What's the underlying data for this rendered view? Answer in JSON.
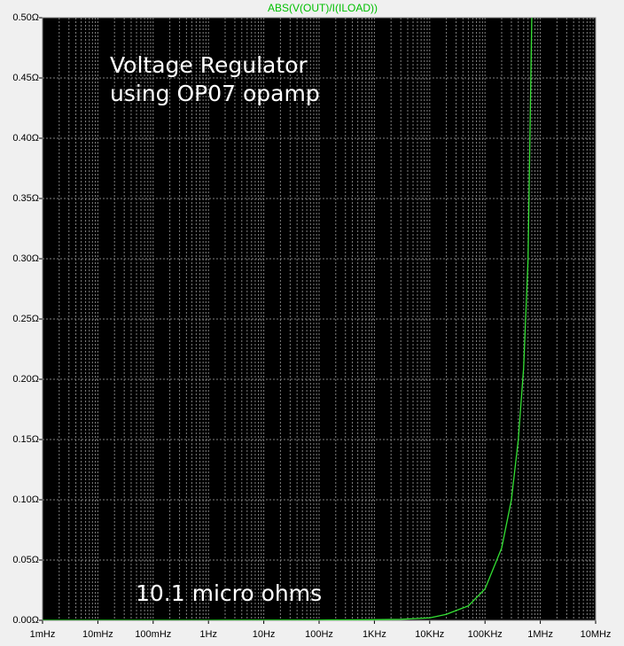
{
  "chart_data": {
    "type": "line",
    "title": "ABS(V(OUT)/I(ILOAD))",
    "x_scale": "log",
    "grid": true,
    "annotations": [
      "Voltage Regulator",
      "using OP07 opamp",
      "10.1 micro ohms"
    ],
    "xlim": [
      0.001,
      10000000
    ],
    "xticks": [
      {
        "value": 0.001,
        "label": "1mHz"
      },
      {
        "value": 0.01,
        "label": "10mHz"
      },
      {
        "value": 0.1,
        "label": "100mHz"
      },
      {
        "value": 1,
        "label": "1Hz"
      },
      {
        "value": 10,
        "label": "10Hz"
      },
      {
        "value": 100,
        "label": "100Hz"
      },
      {
        "value": 1000,
        "label": "1KHz"
      },
      {
        "value": 10000,
        "label": "10KHz"
      },
      {
        "value": 100000,
        "label": "100KHz"
      },
      {
        "value": 1000000,
        "label": "1MHz"
      },
      {
        "value": 10000000,
        "label": "10MHz"
      }
    ],
    "ylim": [
      0,
      0.5
    ],
    "yticks": [
      {
        "value": 0,
        "label": "0.00Ω"
      },
      {
        "value": 0.05,
        "label": "0.05Ω"
      },
      {
        "value": 0.1,
        "label": "0.10Ω"
      },
      {
        "value": 0.15,
        "label": "0.15Ω"
      },
      {
        "value": 0.2,
        "label": "0.20Ω"
      },
      {
        "value": 0.25,
        "label": "0.25Ω"
      },
      {
        "value": 0.3,
        "label": "0.30Ω"
      },
      {
        "value": 0.35,
        "label": "0.35Ω"
      },
      {
        "value": 0.4,
        "label": "0.40Ω"
      },
      {
        "value": 0.45,
        "label": "0.45Ω"
      },
      {
        "value": 0.5,
        "label": "0.50Ω"
      }
    ],
    "x": [
      0.001,
      1,
      100,
      1000,
      3000,
      10000,
      20000,
      50000,
      100000,
      200000,
      300000,
      400000,
      500000,
      600000,
      700000
    ],
    "series": [
      {
        "name": "ABS(V(OUT)/I(ILOAD))",
        "color": "#33e033",
        "values": [
          1.01e-05,
          1.1e-05,
          0.0002,
          0.0005,
          0.0008,
          0.002,
          0.005,
          0.012,
          0.026,
          0.06,
          0.1,
          0.15,
          0.21,
          0.3,
          0.5
        ]
      }
    ]
  }
}
